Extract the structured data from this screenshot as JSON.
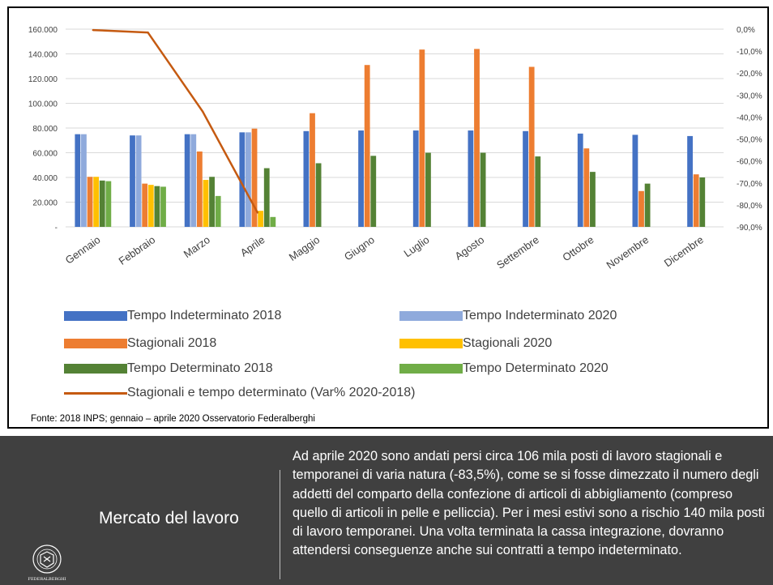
{
  "chart_data": {
    "type": "bar",
    "categories": [
      "Gennaio",
      "Febbraio",
      "Marzo",
      "Aprile",
      "Maggio",
      "Giugno",
      "Luglio",
      "Agosto",
      "Settembre",
      "Ottobre",
      "Novembre",
      "Dicembre"
    ],
    "y_left_ticks": [
      "160.000",
      "140.000",
      "120.000",
      "100.000",
      "80.000",
      "60.000",
      "40.000",
      "20.000",
      "-"
    ],
    "y_left_lim": [
      0,
      160000
    ],
    "y_right_ticks": [
      "0,0%",
      "-10,0%",
      "-20,0%",
      "-30,0%",
      "-40,0%",
      "-50,0%",
      "-60,0%",
      "-70,0%",
      "-80,0%",
      "-90,0%"
    ],
    "y_right_lim": [
      -90,
      0
    ],
    "grid": true,
    "legend_position": "bottom",
    "series": [
      {
        "name": "Tempo Indeterminato 2018",
        "color": "#4472c4",
        "axis": "left",
        "values": [
          75000,
          74000,
          75000,
          76500,
          77500,
          78000,
          78000,
          78000,
          77500,
          75500,
          74500,
          73500
        ]
      },
      {
        "name": "Tempo Indeterminato 2020",
        "color": "#8faadc",
        "axis": "left",
        "values": [
          75000,
          74000,
          75000,
          76500,
          null,
          null,
          null,
          null,
          null,
          null,
          null,
          null
        ]
      },
      {
        "name": "Stagionali 2018",
        "color": "#ed7d31",
        "axis": "left",
        "values": [
          40500,
          35000,
          61000,
          79500,
          92000,
          131000,
          143500,
          144000,
          129500,
          63500,
          29000,
          42500
        ]
      },
      {
        "name": "Stagionali 2020",
        "color": "#ffc000",
        "axis": "left",
        "values": [
          40500,
          34000,
          38000,
          13000,
          null,
          null,
          null,
          null,
          null,
          null,
          null,
          null
        ]
      },
      {
        "name": "Tempo Determinato 2018",
        "color": "#548235",
        "axis": "left",
        "values": [
          37500,
          33000,
          40500,
          47500,
          51500,
          57500,
          60000,
          60000,
          57000,
          44500,
          35000,
          40000
        ]
      },
      {
        "name": "Tempo Determinato 2020",
        "color": "#70ad47",
        "axis": "left",
        "values": [
          37000,
          32500,
          25000,
          8000,
          null,
          null,
          null,
          null,
          null,
          null,
          null,
          null
        ]
      },
      {
        "name": "Stagionali e tempo determinato (Var% 2020-2018)",
        "color": "#c55a11",
        "axis": "right",
        "type": "line",
        "values": [
          -0.4,
          -1.5,
          -37.5,
          -83.5,
          null,
          null,
          null,
          null,
          null,
          null,
          null,
          null
        ]
      }
    ]
  },
  "source": "Fonte: 2018 INPS; gennaio – aprile 2020 Osservatorio Federalberghi",
  "footer": {
    "title": "Mercato del lavoro",
    "text": "Ad aprile 2020 sono andati persi circa 106 mila posti di lavoro stagionali e temporanei di varia natura (-83,5%), come se si fosse dimezzato il numero degli addetti del comparto della confezione di articoli di abbigliamento (compreso quello di articoli in pelle e pelliccia). Per i mesi estivi sono a rischio 140 mila posti di lavoro temporanei. Una volta terminata la cassa integrazione, dovranno attendersi conseguenze anche sui contratti a tempo indeterminato.",
    "logo_name": "federalberghi-logo",
    "logo_text": "FEDERALBERGHI",
    "logo_ring_text": "L'OSPITALITÀ ITALIANA"
  }
}
